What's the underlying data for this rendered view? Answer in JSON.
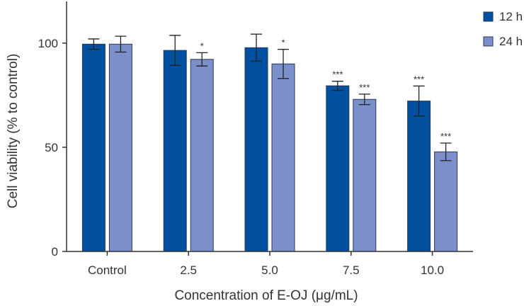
{
  "chart_data": {
    "type": "bar",
    "xlabel": "Concentration of E-OJ (μg/mL)",
    "ylabel": "Cell viability (% to control)",
    "categories": [
      "Control",
      "2.5",
      "5.0",
      "7.5",
      "10.0"
    ],
    "ylim": [
      0,
      120
    ],
    "yticks": [
      0,
      50,
      100
    ],
    "series": [
      {
        "name": "12 h",
        "color": "#0050a0",
        "values": [
          99.5,
          96.5,
          97.8,
          79.5,
          72.2
        ],
        "errors": [
          2.5,
          7.2,
          6.5,
          2.2,
          7.2
        ],
        "significance": [
          "",
          "",
          "",
          "***",
          "***"
        ]
      },
      {
        "name": "24 h",
        "color": "#7b8fca",
        "values": [
          99.5,
          92.2,
          90.0,
          73.0,
          47.8
        ],
        "errors": [
          3.8,
          3.2,
          7.0,
          2.5,
          4.2
        ],
        "significance": [
          "",
          "*",
          "*",
          "***",
          "***"
        ]
      }
    ],
    "legend_position": "top-right",
    "grid": false
  }
}
